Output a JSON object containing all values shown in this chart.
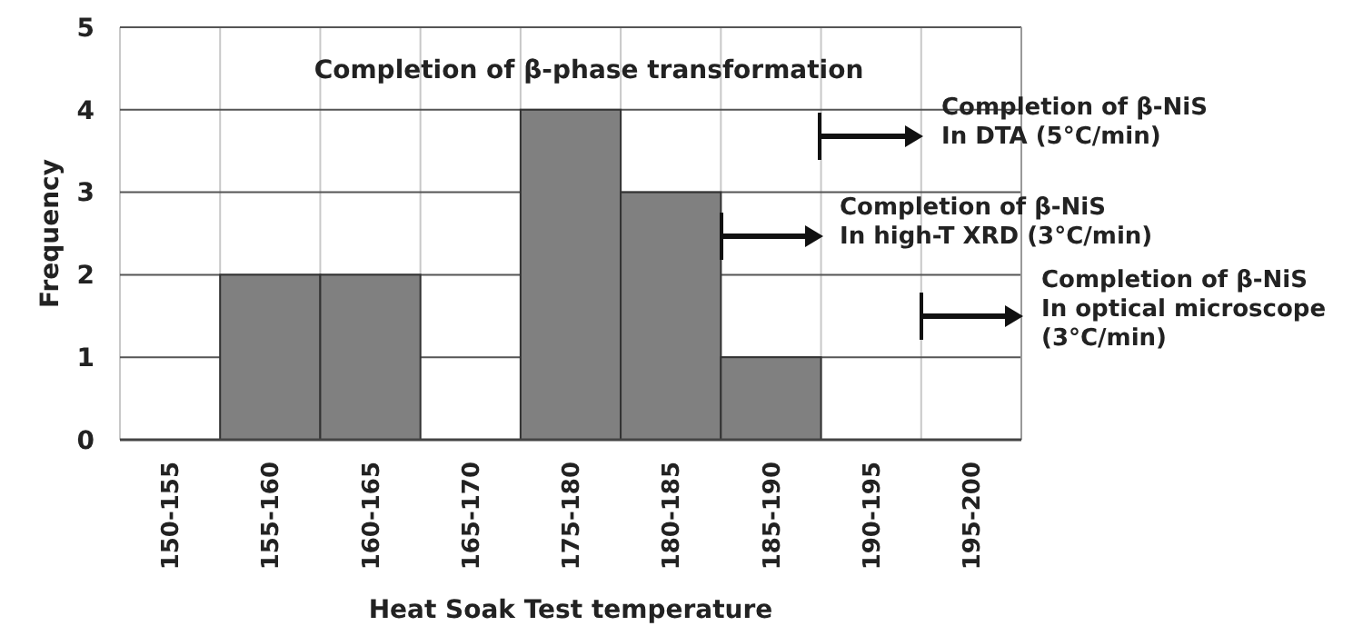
{
  "chart_data": {
    "type": "bar",
    "title": "Completion of β-phase transformation",
    "xlabel": "Heat Soak Test temperature",
    "ylabel": "Frequency",
    "categories": [
      "150-155",
      "155-160",
      "160-165",
      "165-170",
      "175-180",
      "180-185",
      "185-190",
      "190-195",
      "195-200"
    ],
    "values": [
      0,
      2,
      2,
      0,
      4,
      3,
      1,
      0,
      0
    ],
    "color": "#808080",
    "ylim": [
      0,
      5
    ],
    "yticks": [
      0,
      1,
      2,
      3,
      4,
      5
    ],
    "grid": true,
    "annotations": [
      "Completion of β-NiS\nIn DTA (5°C/min)",
      "Completion of β-NiS\nIn high-T XRD (3°C/min)",
      "Completion of β-NiS\nIn optical microscope\n(3°C/min)"
    ]
  }
}
